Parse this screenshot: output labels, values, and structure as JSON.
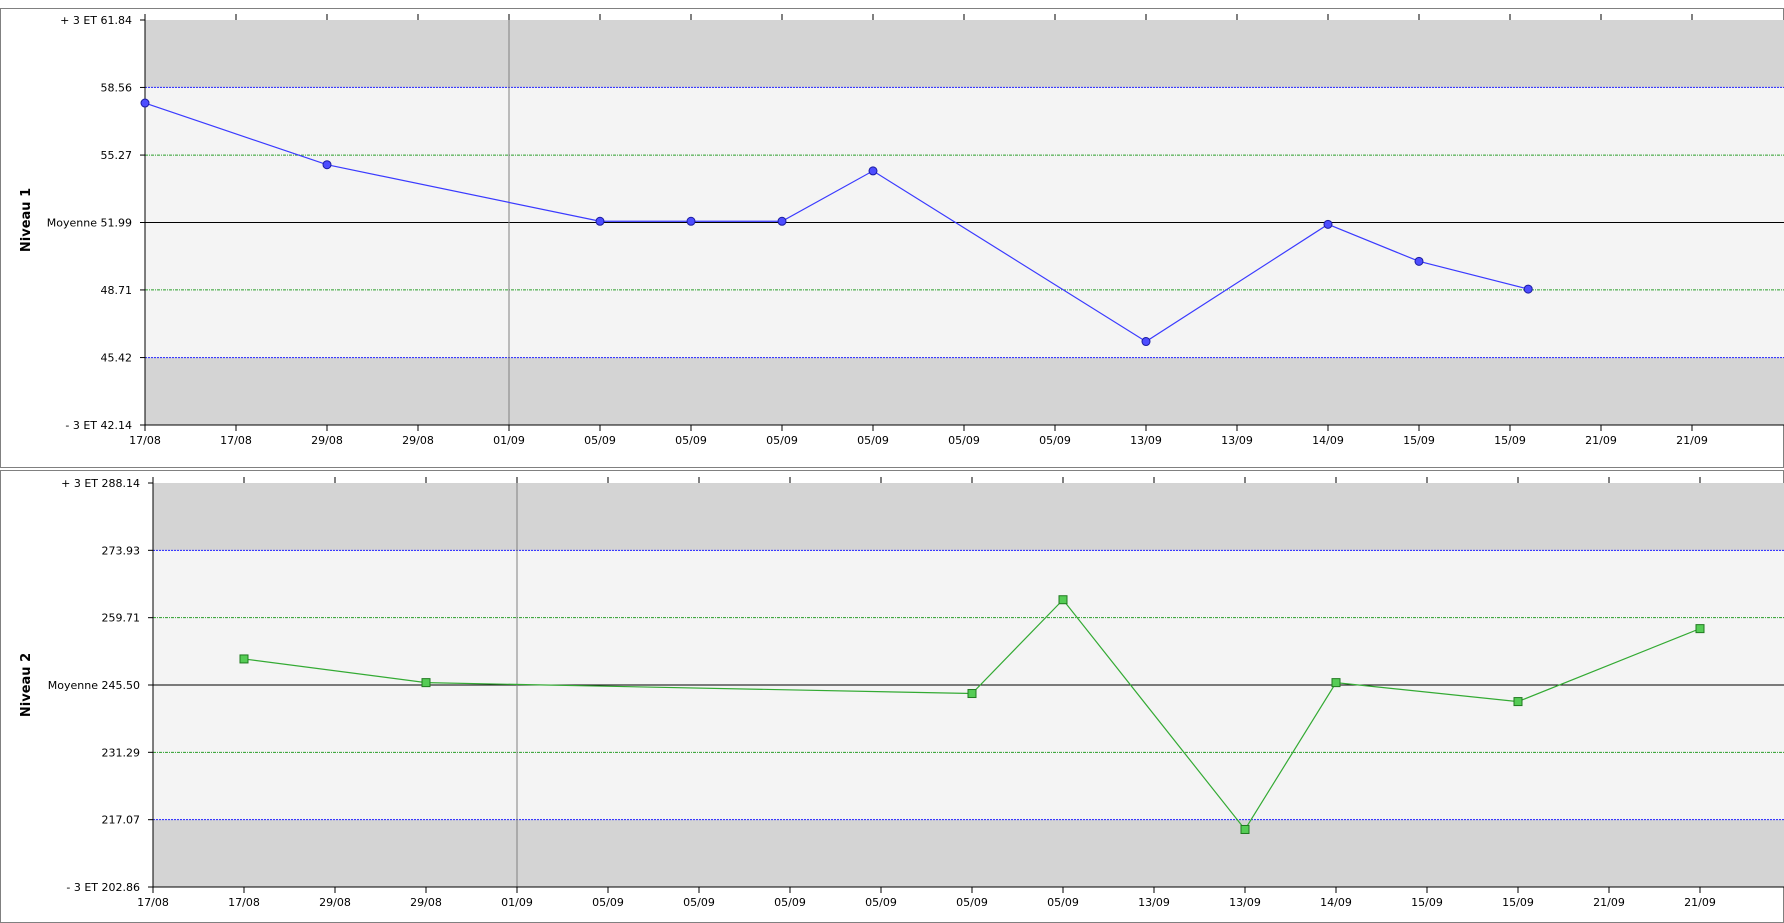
{
  "chart_data": [
    {
      "type": "line",
      "title": "",
      "ylabel": "Niveau 1",
      "xlabel": "",
      "ylim": [
        42.14,
        61.84
      ],
      "y_ticks": [
        {
          "value": 61.84,
          "label": "+ 3 ET 61.84"
        },
        {
          "value": 58.56,
          "label": "58.56"
        },
        {
          "value": 55.27,
          "label": "55.27"
        },
        {
          "value": 51.99,
          "label": "Moyenne 51.99"
        },
        {
          "value": 48.71,
          "label": "48.71"
        },
        {
          "value": 45.42,
          "label": "45.42"
        },
        {
          "value": 42.14,
          "label": "- 3 ET 42.14"
        }
      ],
      "x_tick_labels": [
        "17/08",
        "17/08",
        "29/08",
        "29/08",
        "01/09",
        "05/09",
        "05/09",
        "05/09",
        "05/09",
        "05/09",
        "05/09",
        "13/09",
        "13/09",
        "14/09",
        "15/09",
        "15/09",
        "21/09",
        "21/09"
      ],
      "mean": 51.99,
      "limits_2sd": [
        45.42,
        58.56
      ],
      "limits_1sd": [
        48.71,
        55.27
      ],
      "vertical_marker_index": 4,
      "series": [
        {
          "marker": "circle",
          "color": "#3a3aff",
          "points": [
            {
              "i": 0,
              "y": 57.8
            },
            {
              "i": 2,
              "y": 54.8
            },
            {
              "i": 5,
              "y": 52.05
            },
            {
              "i": 6,
              "y": 52.05
            },
            {
              "i": 7,
              "y": 52.05
            },
            {
              "i": 8,
              "y": 54.5
            },
            {
              "i": 11,
              "y": 46.2
            },
            {
              "i": 13,
              "y": 51.9
            },
            {
              "i": 14,
              "y": 50.1
            },
            {
              "i": 15.2,
              "y": 48.75
            }
          ]
        }
      ]
    },
    {
      "type": "line",
      "title": "",
      "ylabel": "Niveau 2",
      "xlabel": "",
      "ylim": [
        202.86,
        288.14
      ],
      "y_ticks": [
        {
          "value": 288.14,
          "label": "+ 3 ET 288.14"
        },
        {
          "value": 273.93,
          "label": "273.93"
        },
        {
          "value": 259.71,
          "label": "259.71"
        },
        {
          "value": 245.5,
          "label": "Moyenne 245.50"
        },
        {
          "value": 231.29,
          "label": "231.29"
        },
        {
          "value": 217.07,
          "label": "217.07"
        },
        {
          "value": 202.86,
          "label": "- 3 ET 202.86"
        }
      ],
      "x_tick_labels": [
        "17/08",
        "17/08",
        "29/08",
        "29/08",
        "01/09",
        "05/09",
        "05/09",
        "05/09",
        "05/09",
        "05/09",
        "05/09",
        "13/09",
        "13/09",
        "14/09",
        "15/09",
        "15/09",
        "21/09",
        "21/09"
      ],
      "mean": 245.5,
      "limits_2sd": [
        217.07,
        273.93
      ],
      "limits_1sd": [
        231.29,
        259.71
      ],
      "vertical_marker_index": 4,
      "series": [
        {
          "marker": "square",
          "color": "#33aa33",
          "points": [
            {
              "i": 1,
              "y": 251.0
            },
            {
              "i": 3,
              "y": 246.0
            },
            {
              "i": 9,
              "y": 243.7
            },
            {
              "i": 10,
              "y": 263.5
            },
            {
              "i": 12,
              "y": 215.0
            },
            {
              "i": 13,
              "y": 246.0
            },
            {
              "i": 15,
              "y": 242.0
            },
            {
              "i": 17,
              "y": 257.4
            }
          ]
        }
      ]
    }
  ],
  "colors": {
    "outer_band": "#d4d4d4",
    "inner_band": "#f4f4f4",
    "line_2sd": "#2020ff",
    "line_1sd": "#2a9d2a",
    "mean_line": "#000000"
  }
}
